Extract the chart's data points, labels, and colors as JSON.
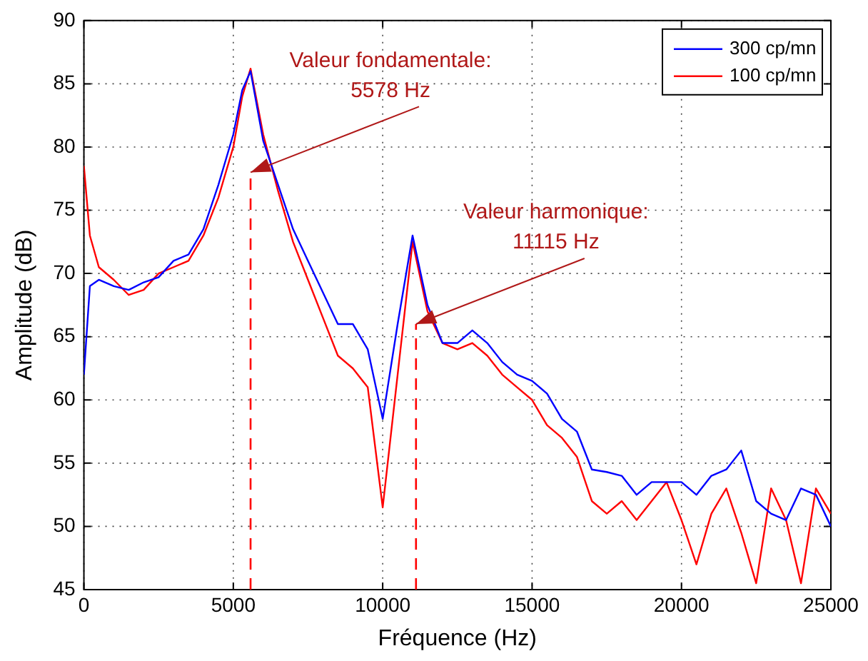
{
  "chart_data": {
    "type": "line",
    "xlabel": "Fréquence (Hz)",
    "ylabel": "Amplitude (dB)",
    "x": [
      0,
      200,
      500,
      1000,
      1500,
      2000,
      2500,
      3000,
      3500,
      4000,
      4500,
      5000,
      5300,
      5578,
      6000,
      6500,
      7000,
      7500,
      8000,
      8500,
      9000,
      9500,
      10000,
      10500,
      11000,
      11500,
      12000,
      12500,
      13000,
      13500,
      14000,
      14500,
      15000,
      15500,
      16000,
      16500,
      17000,
      17500,
      18000,
      18500,
      19000,
      19500,
      20000,
      20500,
      21000,
      21500,
      22000,
      22500,
      23000,
      23500,
      24000,
      24500,
      25000
    ],
    "series": [
      {
        "name": "300 cp/mn",
        "color": "#0000ff",
        "values": [
          62,
          69,
          69.5,
          69,
          68.7,
          69.3,
          69.7,
          71,
          71.5,
          73.5,
          77,
          81,
          84.5,
          86,
          80.5,
          77,
          73.5,
          71,
          68.5,
          66,
          66,
          64,
          58.5,
          66,
          73,
          67.5,
          64.5,
          64.5,
          65.5,
          64.5,
          63,
          62,
          61.5,
          60.5,
          58.5,
          57.5,
          54.5,
          54.3,
          54,
          52.5,
          53.5,
          53.5,
          53.5,
          52.5,
          54,
          54.5,
          56,
          52,
          51,
          50.5,
          53,
          52.5,
          50
        ]
      },
      {
        "name": "100 cp/mn",
        "color": "#ff0000",
        "values": [
          78.5,
          73,
          70.5,
          69.5,
          68.3,
          68.7,
          70,
          70.5,
          71,
          73,
          76,
          80,
          84,
          86.2,
          81,
          76.5,
          72.5,
          69.5,
          66.5,
          63.5,
          62.5,
          61,
          51.5,
          62,
          72.5,
          67,
          64.5,
          64,
          64.5,
          63.5,
          62,
          61,
          60,
          58,
          57,
          55.5,
          52,
          51,
          52,
          50.5,
          52,
          53.5,
          50.5,
          47,
          51,
          53,
          49.5,
          45.5,
          53,
          50.5,
          45.5,
          53,
          51
        ]
      }
    ],
    "xlim": [
      0,
      25000
    ],
    "xticks": [
      0,
      5000,
      10000,
      15000,
      20000,
      25000
    ],
    "ylim": [
      45,
      90
    ],
    "yticks": [
      45,
      50,
      55,
      60,
      65,
      70,
      75,
      80,
      85,
      90
    ],
    "grid": true,
    "legend": "top right",
    "marker": "none",
    "line_style": "solid",
    "ref_lines": [
      {
        "axis": "x",
        "value": 5578,
        "color": "#ff0000",
        "line_style": "dashed"
      },
      {
        "axis": "x",
        "value": 11115,
        "color": "#ff0000",
        "line_style": "dashed"
      }
    ],
    "annotations": [
      {
        "text": "Valeur fondamentale:\n5578 Hz",
        "x": 5578,
        "y": 78
      },
      {
        "text": "Valeur harmonique:\n11115 Hz",
        "x": 11115,
        "y": 66
      }
    ]
  }
}
